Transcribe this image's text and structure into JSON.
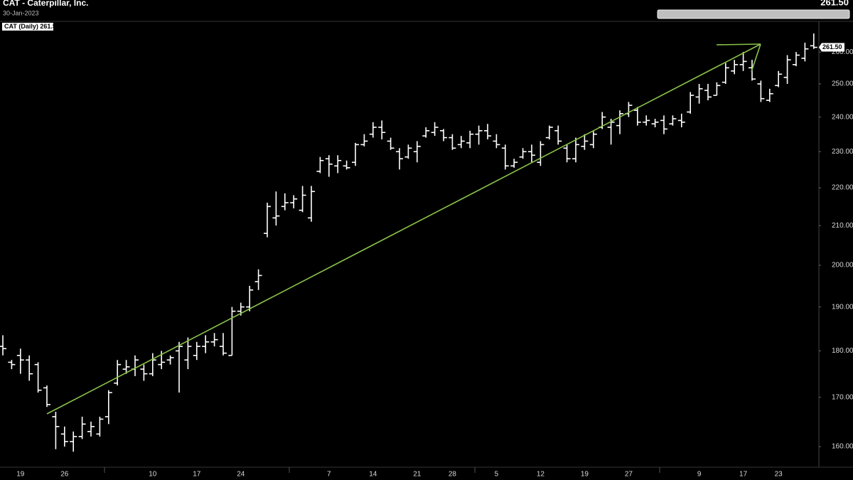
{
  "chart_data": {
    "type": "ohlc",
    "title": "CAT - Caterpillar, Inc.",
    "subtitle": "30-Jan-2023",
    "last_price": {
      "value": 261.5,
      "label": "261.50"
    },
    "log_scale": true,
    "ylim": [
      156,
      270
    ],
    "yticks": [
      {
        "value": 160,
        "label": "160.00"
      },
      {
        "value": 170,
        "label": "170.00"
      },
      {
        "value": 180,
        "label": "180.00"
      },
      {
        "value": 190,
        "label": "190.00"
      },
      {
        "value": 200,
        "label": "200.00"
      },
      {
        "value": 210,
        "label": "210.00"
      },
      {
        "value": 220,
        "label": "220.00"
      },
      {
        "value": 230,
        "label": "230.00"
      },
      {
        "value": 240,
        "label": "240.00"
      },
      {
        "value": 250,
        "label": "250.00"
      },
      {
        "value": 260,
        "label": "260.00"
      }
    ],
    "categories": [
      null,
      null,
      "19",
      null,
      null,
      null,
      null,
      "26",
      null,
      null,
      null,
      null,
      null,
      null,
      null,
      null,
      null,
      "10",
      null,
      null,
      null,
      null,
      "17",
      null,
      null,
      null,
      null,
      "24",
      null,
      null,
      null,
      null,
      null,
      null,
      null,
      null,
      null,
      "7",
      null,
      null,
      null,
      null,
      "14",
      null,
      null,
      null,
      null,
      "21",
      null,
      null,
      null,
      "28",
      null,
      null,
      null,
      null,
      "5",
      null,
      null,
      null,
      null,
      "12",
      null,
      null,
      null,
      null,
      "19",
      null,
      null,
      null,
      null,
      "27",
      null,
      null,
      null,
      null,
      null,
      null,
      null,
      "9",
      null,
      null,
      null,
      null,
      "17",
      null,
      null,
      null,
      "23",
      null,
      null,
      null,
      null
    ],
    "series": [
      {
        "name": "CAT (Daily)",
        "color": "#ffffff",
        "open": [
          181,
          177.5,
          179,
          178,
          177,
          172,
          166,
          162.5,
          161,
          162,
          163,
          162.5,
          166,
          173,
          176,
          176,
          176,
          175,
          177,
          178,
          180,
          178,
          179,
          181,
          182,
          181,
          179,
          189,
          190,
          196,
          208,
          212,
          215,
          216,
          214,
          212,
          224.5,
          228,
          226,
          226,
          227,
          232,
          235,
          237,
          233,
          230,
          228.5,
          230,
          234.5,
          235.5,
          236,
          234,
          232,
          232.5,
          235,
          236,
          233,
          231,
          226,
          228.5,
          230,
          227,
          234,
          236,
          231,
          228,
          231.5,
          232,
          237,
          237,
          237.5,
          241,
          242,
          238.5,
          238,
          239,
          238,
          239,
          241.5,
          246,
          248,
          246.5,
          250.5,
          254,
          256,
          255,
          250,
          245,
          249.5,
          252,
          256,
          258,
          262
        ],
        "high": [
          183.5,
          178,
          180.5,
          179,
          177.5,
          172.5,
          167,
          164,
          163,
          166,
          165,
          166,
          171.5,
          178,
          178,
          179,
          177,
          179.5,
          180,
          179,
          182,
          183,
          182,
          183.5,
          184,
          184,
          190,
          191,
          195,
          199,
          216,
          219,
          218.5,
          218,
          220.5,
          220.5,
          228.5,
          229,
          229,
          227.5,
          232.5,
          235,
          238.5,
          239,
          234,
          231,
          232,
          233,
          237,
          238.5,
          236.5,
          235,
          234.5,
          236,
          237.5,
          238,
          235,
          232,
          228,
          231,
          232,
          233,
          237.5,
          237.5,
          232,
          234,
          235,
          236,
          241.5,
          239.5,
          242,
          244.5,
          243,
          240.5,
          239.5,
          240.5,
          240.5,
          241,
          247.5,
          250,
          250,
          250.5,
          256.5,
          257.5,
          260,
          257.5,
          251,
          248.5,
          254,
          259,
          260,
          263,
          266
        ],
        "low": [
          179,
          176,
          175,
          173.5,
          171,
          168,
          159.5,
          160,
          159,
          161.5,
          162,
          162,
          164.5,
          172.5,
          175,
          174.5,
          173.5,
          174.5,
          176,
          177,
          171,
          176,
          178,
          179.5,
          181,
          179,
          179,
          188,
          189,
          194,
          207,
          210,
          214,
          214.5,
          213.5,
          211,
          224,
          223,
          224,
          225,
          226,
          231.5,
          234,
          233.5,
          230.5,
          225,
          228,
          227,
          234,
          234.5,
          233,
          230.5,
          231,
          231,
          232,
          233.5,
          231,
          225,
          225.5,
          228,
          227,
          226,
          233.5,
          232,
          227,
          227,
          230.5,
          231,
          236.5,
          232,
          235,
          240,
          237.5,
          237.5,
          237,
          235,
          237.5,
          237,
          241,
          244,
          245,
          246.5,
          250,
          253,
          254,
          251,
          244.5,
          244.5,
          249,
          250,
          255.5,
          257,
          261
        ],
        "close": [
          180.5,
          177,
          178,
          175,
          171.5,
          168.5,
          164,
          161,
          162,
          164.5,
          164,
          165.5,
          171,
          177,
          176.5,
          178,
          175,
          178,
          177.5,
          178.5,
          181,
          181,
          181,
          182,
          182.5,
          179.5,
          189,
          190,
          194,
          197.5,
          215,
          212.5,
          216,
          217,
          218,
          219,
          227.5,
          226.5,
          227.5,
          225.5,
          232,
          233,
          237,
          235.5,
          231,
          228,
          231,
          231.5,
          236,
          237,
          234,
          231,
          233,
          235,
          236,
          234.5,
          232,
          226,
          227,
          230,
          229,
          232,
          237,
          233,
          228,
          232,
          233,
          235,
          240,
          238.5,
          241,
          243.5,
          238.5,
          239,
          238.5,
          236.5,
          239.5,
          238.5,
          246.5,
          248.5,
          246,
          249.5,
          255,
          256,
          257,
          251.5,
          245.5,
          247,
          253,
          257.5,
          259,
          261,
          261.5
        ]
      }
    ]
  }
}
